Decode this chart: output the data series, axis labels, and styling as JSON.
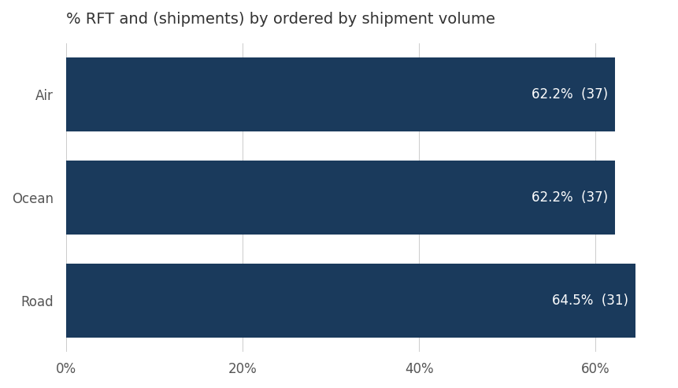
{
  "title": "% RFT and (shipments) by ordered by shipment volume",
  "categories": [
    "Road",
    "Ocean",
    "Air"
  ],
  "values": [
    64.5,
    62.2,
    62.2
  ],
  "shipments": [
    31,
    37,
    37
  ],
  "bar_color": "#1a3a5c",
  "text_color_bar": "#ffffff",
  "title_color": "#333333",
  "label_color": "#555555",
  "background_color": "#ffffff",
  "xlim": [
    0,
    68
  ],
  "xticks": [
    0,
    20,
    40,
    60
  ],
  "xtick_labels": [
    "0%",
    "20%",
    "40%",
    "60%"
  ],
  "bar_height": 0.72,
  "title_fontsize": 14,
  "label_fontsize": 12,
  "tick_fontsize": 12,
  "bar_label_fontsize": 12
}
